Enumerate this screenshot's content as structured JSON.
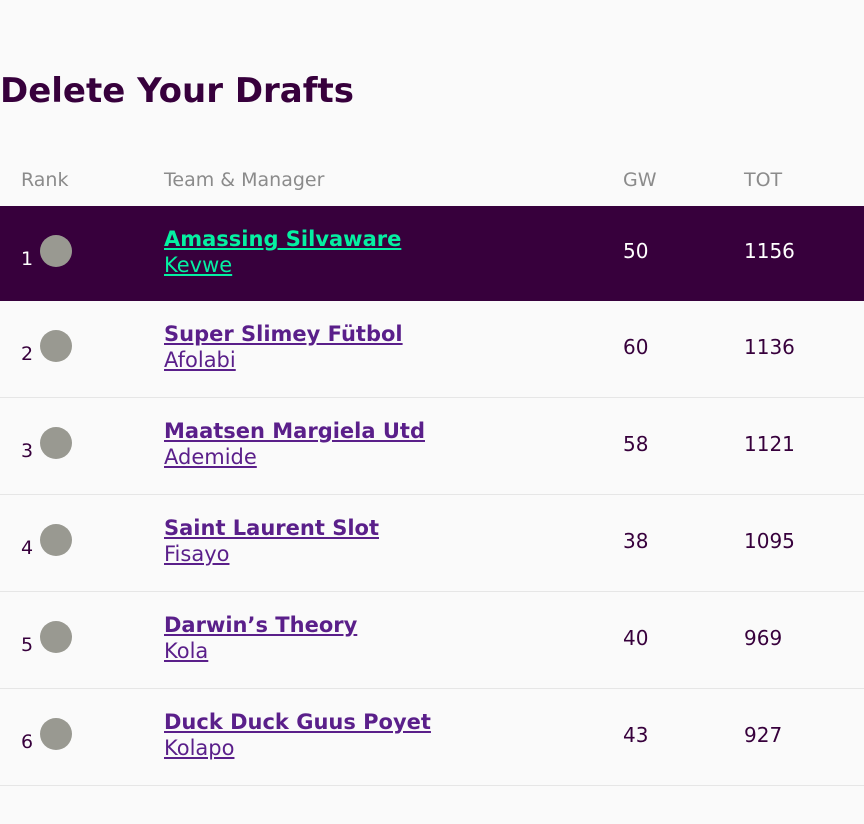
{
  "title": "Delete Your Drafts",
  "headers": {
    "rank": "Rank",
    "team": "Team & Manager",
    "gw": "GW",
    "tot": "TOT"
  },
  "rows": [
    {
      "rank": "1",
      "team": "Amassing Silvaware",
      "manager": "Kevwe",
      "gw": "50",
      "tot": "1156",
      "highlighted": true
    },
    {
      "rank": "2",
      "team": "Super Slimey Fütbol",
      "manager": "Afolabi",
      "gw": "60",
      "tot": "1136"
    },
    {
      "rank": "3",
      "team": "Maatsen Margiela Utd",
      "manager": "Ademide",
      "gw": "58",
      "tot": "1121"
    },
    {
      "rank": "4",
      "team": "Saint Laurent Slot",
      "manager": "Fisayo",
      "gw": "38",
      "tot": "1095"
    },
    {
      "rank": "5",
      "team": "Darwin’s Theory",
      "manager": "Kola",
      "gw": "40",
      "tot": "969"
    },
    {
      "rank": "6",
      "team": "Duck Duck Guus Poyet",
      "manager": "Kolapo",
      "gw": "43",
      "tot": "927"
    }
  ],
  "colors": {
    "brand_purple": "#37003c",
    "link_purple": "#5a1f8a",
    "highlight_green": "#05f0a2",
    "movement_grey": "#999991"
  }
}
